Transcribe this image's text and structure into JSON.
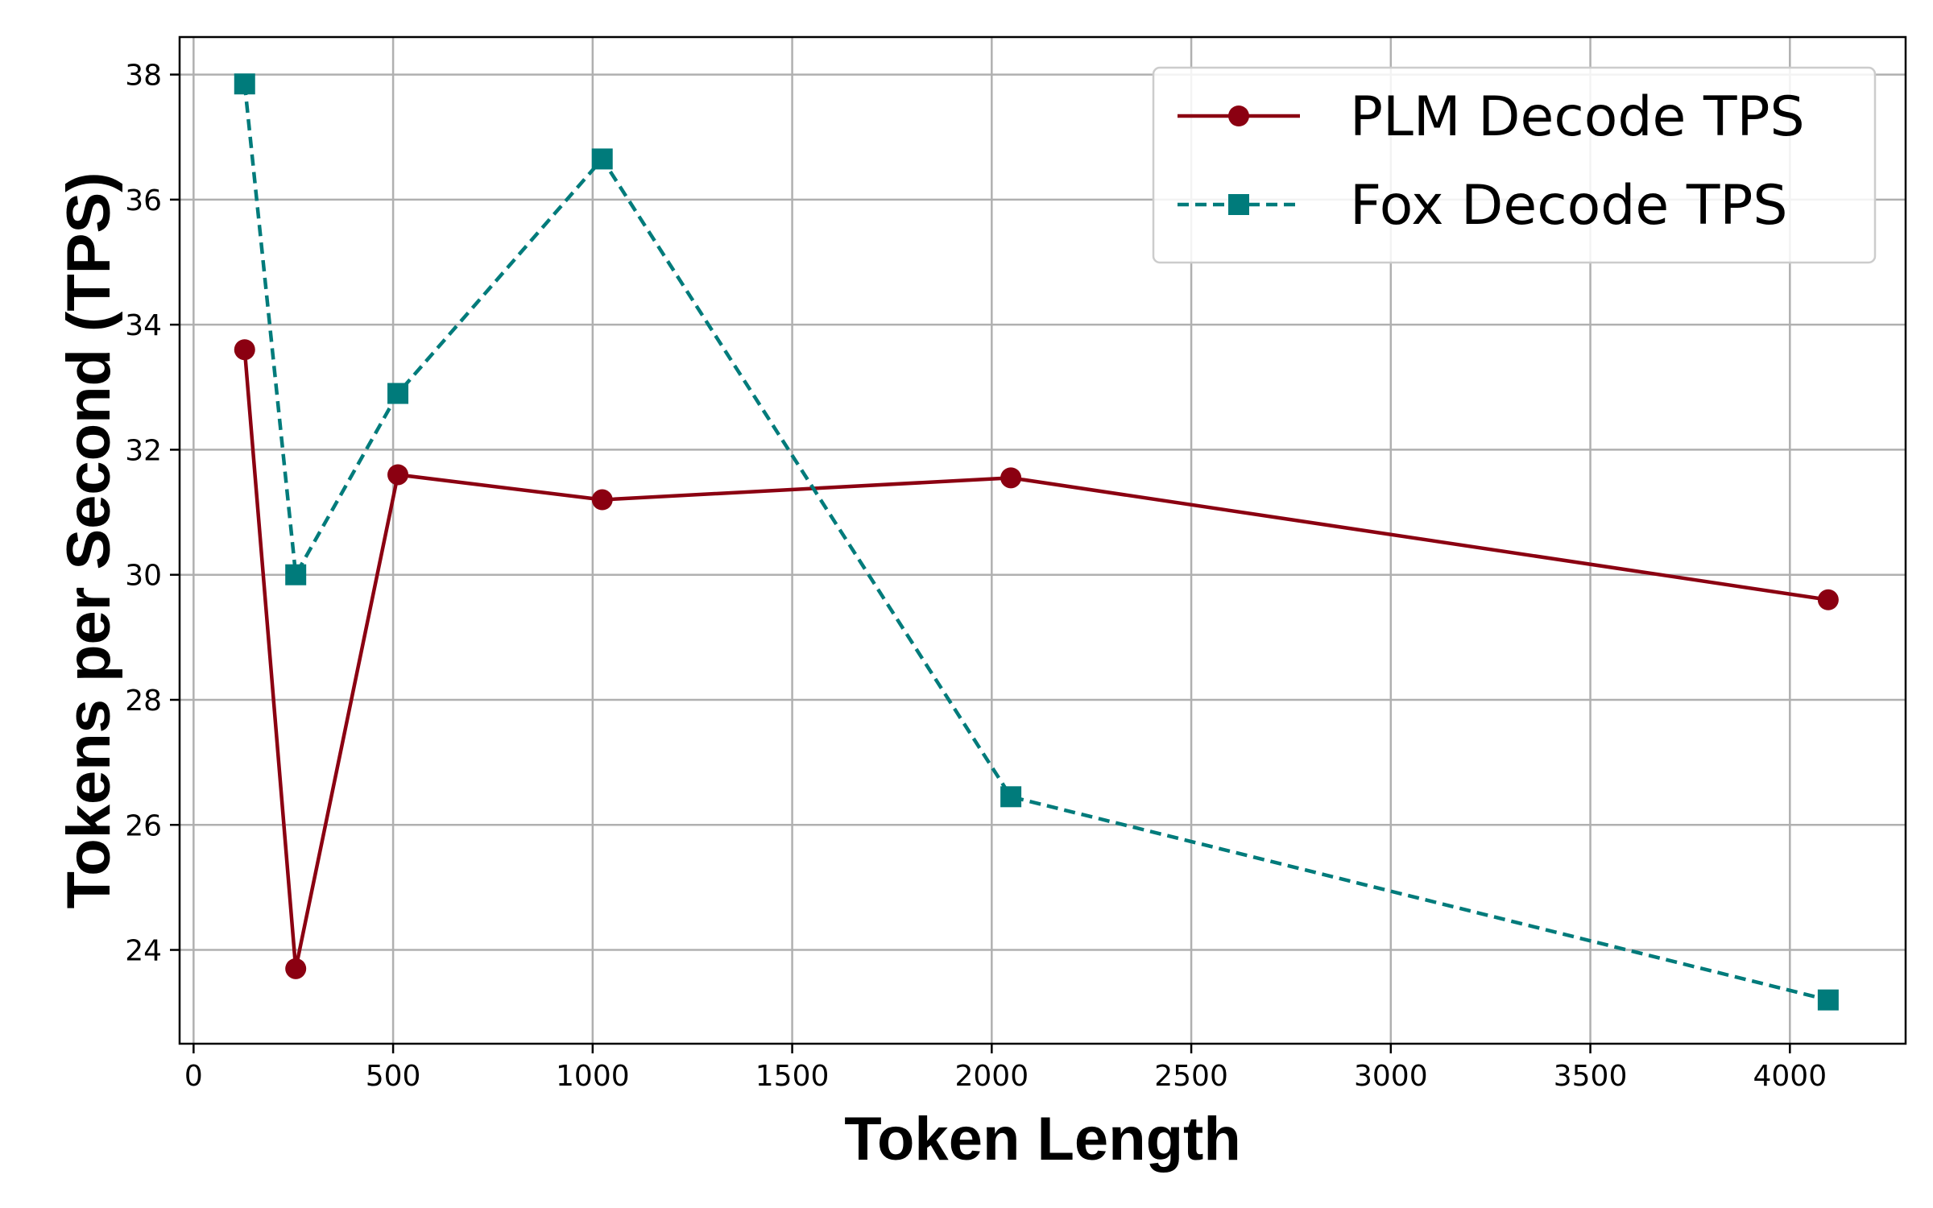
{
  "chart_data": {
    "type": "line",
    "xlabel": "Token Length",
    "ylabel": "Tokens per Second (TPS)",
    "xlim": [
      -35,
      4290
    ],
    "ylim": [
      22.5,
      38.6
    ],
    "xticks": [
      0,
      500,
      1000,
      1500,
      2000,
      2500,
      3000,
      3500,
      4000
    ],
    "yticks": [
      24,
      26,
      28,
      30,
      32,
      34,
      36,
      38
    ],
    "grid": true,
    "legend_position": "top-right",
    "series": [
      {
        "name": "PLM Decode TPS",
        "color": "#8b0011",
        "line_style": "solid",
        "marker": "circle",
        "x": [
          128,
          256,
          512,
          1024,
          2048,
          4096
        ],
        "y": [
          33.6,
          23.7,
          31.6,
          31.2,
          31.55,
          29.6
        ]
      },
      {
        "name": "Fox Decode TPS",
        "color": "#007b7b",
        "line_style": "dashed",
        "marker": "square",
        "x": [
          128,
          256,
          512,
          1024,
          2048,
          4096
        ],
        "y": [
          37.85,
          30.0,
          32.9,
          36.65,
          26.45,
          23.2
        ]
      }
    ]
  }
}
